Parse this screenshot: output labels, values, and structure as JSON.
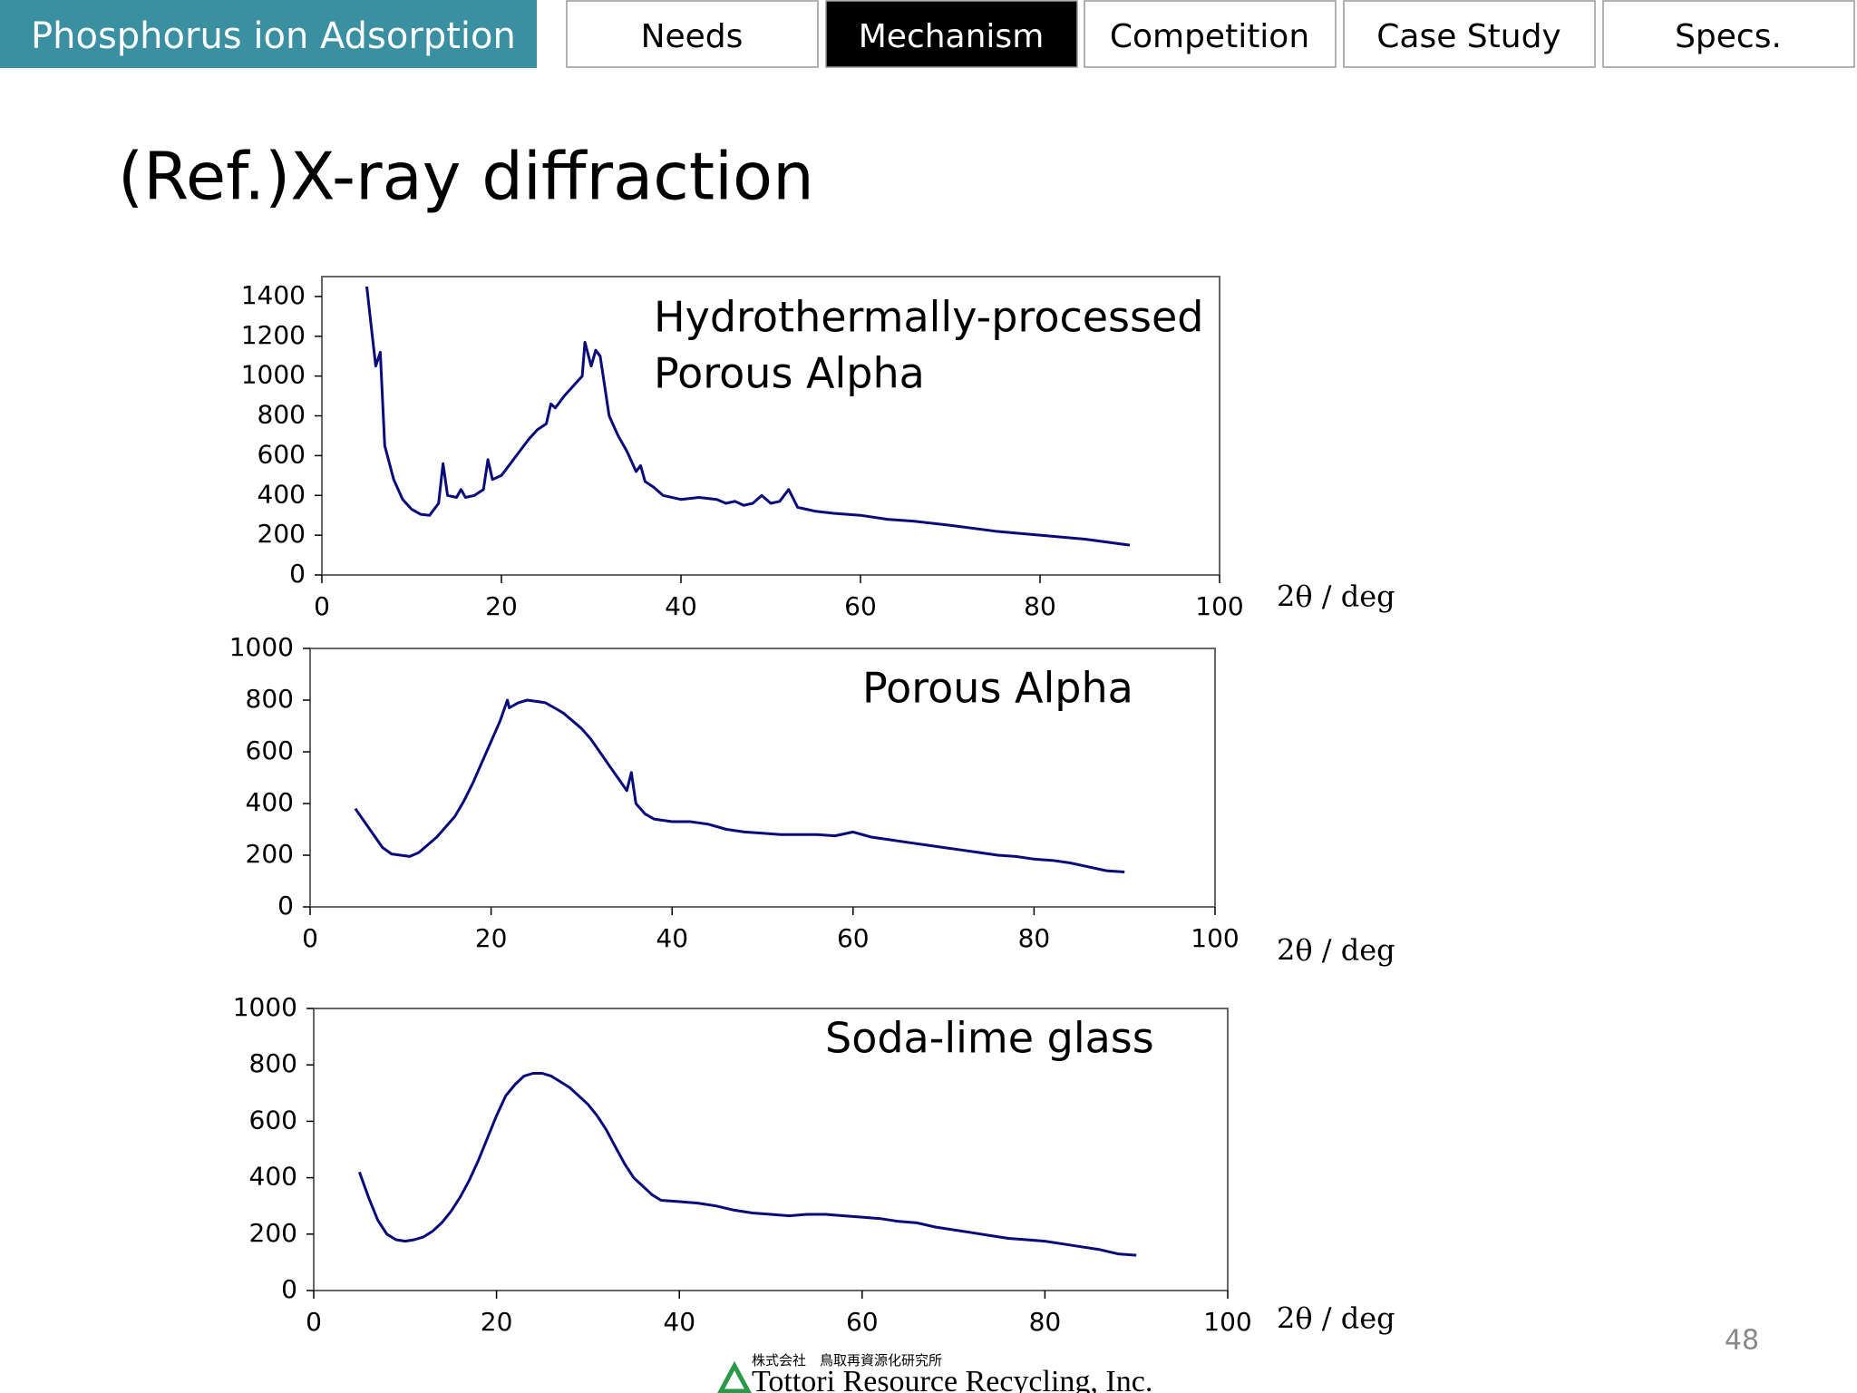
{
  "page": {
    "header_tab": "Phosphorus ion Adsorption",
    "nav": [
      "Needs",
      "Mechanism",
      "Competition",
      "Case Study",
      "Specs."
    ],
    "slide_title": "(Ref.)X-ray diffraction",
    "page_number": "48",
    "company_jp": "株式会社　鳥取再資源化研究所",
    "company_en": "Tottori Resource Recycling, Inc."
  },
  "chart_data": [
    {
      "type": "line",
      "title_lines": [
        "Hydrothermally-processed",
        "Porous Alpha"
      ],
      "xlabel": "2θ / deg",
      "color": "#0a0a7a",
      "xlim": [
        0,
        100
      ],
      "xticks": [
        0,
        20,
        40,
        60,
        80,
        100
      ],
      "ylim": [
        0,
        1500
      ],
      "yticks": [
        0,
        200,
        400,
        600,
        800,
        1000,
        1200,
        1400
      ],
      "x": [
        5,
        5.5,
        6,
        6.5,
        7,
        8,
        9,
        10,
        11,
        12,
        13,
        13.5,
        14,
        15,
        15.5,
        16,
        17,
        18,
        18.5,
        19,
        20,
        21,
        22,
        23,
        24,
        25,
        25.5,
        26,
        27,
        28,
        29,
        29.3,
        30,
        30.5,
        31,
        32,
        33,
        34,
        35,
        35.5,
        36,
        37,
        38,
        40,
        42,
        44,
        45,
        46,
        47,
        48,
        49,
        50,
        51,
        52,
        53,
        55,
        57,
        60,
        63,
        66,
        70,
        75,
        80,
        85,
        90
      ],
      "values": [
        1450,
        1250,
        1050,
        1120,
        650,
        480,
        380,
        330,
        305,
        300,
        360,
        560,
        400,
        390,
        430,
        390,
        400,
        430,
        580,
        480,
        500,
        560,
        620,
        680,
        730,
        760,
        860,
        840,
        900,
        950,
        1000,
        1170,
        1050,
        1130,
        1100,
        800,
        700,
        620,
        520,
        550,
        470,
        440,
        400,
        380,
        390,
        380,
        360,
        370,
        350,
        360,
        400,
        360,
        370,
        430,
        340,
        320,
        310,
        300,
        280,
        270,
        250,
        220,
        200,
        180,
        150
      ]
    },
    {
      "type": "line",
      "title_lines": [
        "Porous Alpha"
      ],
      "xlabel": "2θ / deg",
      "color": "#0a0a7a",
      "xlim": [
        0,
        100
      ],
      "xticks": [
        0,
        20,
        40,
        60,
        80,
        100
      ],
      "ylim": [
        0,
        1000
      ],
      "yticks": [
        0,
        200,
        400,
        600,
        800,
        1000
      ],
      "x": [
        5,
        6,
        7,
        8,
        9,
        10,
        11,
        12,
        13,
        14,
        15,
        16,
        17,
        18,
        19,
        20,
        21,
        21.8,
        22,
        23,
        24,
        25,
        26,
        27,
        28,
        29,
        30,
        31,
        32,
        33,
        34,
        35,
        35.5,
        36,
        37,
        38,
        40,
        42,
        44,
        46,
        48,
        50,
        52,
        54,
        56,
        58,
        60,
        62,
        64,
        66,
        68,
        70,
        72,
        74,
        76,
        78,
        80,
        82,
        84,
        86,
        88,
        90
      ],
      "values": [
        380,
        330,
        280,
        230,
        205,
        200,
        195,
        210,
        240,
        270,
        310,
        350,
        410,
        480,
        560,
        640,
        720,
        800,
        770,
        790,
        800,
        795,
        790,
        770,
        750,
        720,
        690,
        650,
        600,
        550,
        500,
        450,
        520,
        400,
        360,
        340,
        330,
        330,
        320,
        300,
        290,
        285,
        280,
        280,
        280,
        275,
        290,
        270,
        260,
        250,
        240,
        230,
        220,
        210,
        200,
        195,
        185,
        180,
        170,
        155,
        140,
        135
      ]
    },
    {
      "type": "line",
      "title_lines": [
        "Soda-lime glass"
      ],
      "xlabel": "2θ / deg",
      "color": "#0a0a7a",
      "xlim": [
        0,
        100
      ],
      "xticks": [
        0,
        20,
        40,
        60,
        80,
        100
      ],
      "ylim": [
        0,
        1000
      ],
      "yticks": [
        0,
        200,
        400,
        600,
        800,
        1000
      ],
      "x": [
        5,
        6,
        7,
        8,
        9,
        10,
        11,
        12,
        13,
        14,
        15,
        16,
        17,
        18,
        19,
        20,
        21,
        22,
        23,
        24,
        25,
        26,
        27,
        28,
        29,
        30,
        31,
        32,
        33,
        34,
        35,
        36,
        37,
        38,
        40,
        42,
        44,
        46,
        48,
        50,
        52,
        54,
        56,
        58,
        60,
        62,
        64,
        66,
        68,
        70,
        72,
        74,
        76,
        78,
        80,
        82,
        84,
        86,
        88,
        90
      ],
      "values": [
        420,
        330,
        250,
        200,
        180,
        175,
        180,
        190,
        210,
        240,
        280,
        330,
        390,
        460,
        540,
        620,
        690,
        730,
        760,
        770,
        770,
        760,
        740,
        720,
        690,
        660,
        620,
        570,
        510,
        450,
        400,
        370,
        340,
        320,
        315,
        310,
        300,
        285,
        275,
        270,
        265,
        270,
        270,
        265,
        260,
        255,
        245,
        240,
        225,
        215,
        205,
        195,
        185,
        180,
        175,
        165,
        155,
        145,
        130,
        125
      ]
    }
  ]
}
